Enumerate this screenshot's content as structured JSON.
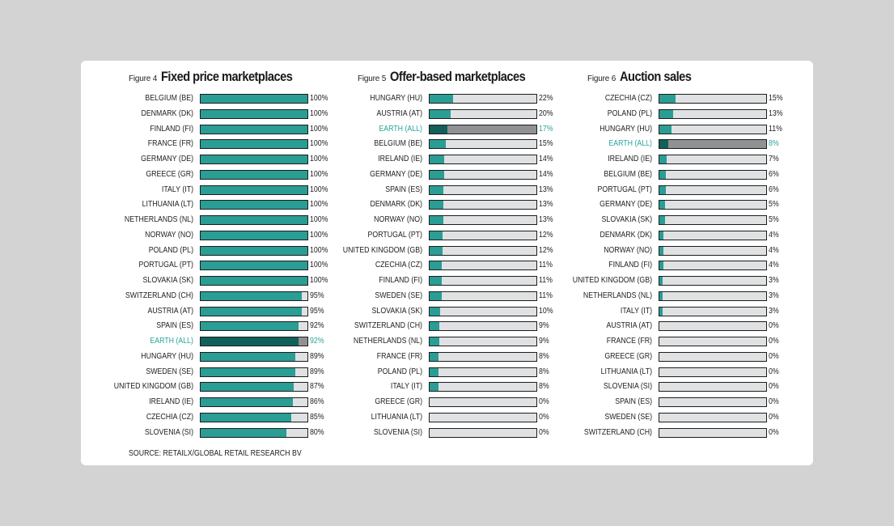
{
  "colors": {
    "bar": "#2a9d94",
    "track": "#dfe1e3",
    "highlight_bar": "#12605a",
    "highlight_track": "#909193",
    "highlight_text": "#2ba49b"
  },
  "source": "SOURCE: RETAILX/GLOBAL RETAIL RESEARCH BV",
  "chart_data": [
    {
      "type": "bar",
      "orientation": "horizontal",
      "figure_label": "Figure 4",
      "title": "Fixed price marketplaces",
      "xlim": [
        0,
        100
      ],
      "highlight": "EARTH (ALL)",
      "categories": [
        "BELGIUM (BE)",
        "DENMARK (DK)",
        "FINLAND (FI)",
        "FRANCE (FR)",
        "GERMANY (DE)",
        "GREECE (GR)",
        "ITALY (IT)",
        "LITHUANIA (LT)",
        "NETHERLANDS (NL)",
        "NORWAY (NO)",
        "POLAND (PL)",
        "PORTUGAL (PT)",
        "SLOVAKIA (SK)",
        "SWITZERLAND (CH)",
        "AUSTRIA (AT)",
        "SPAIN (ES)",
        "EARTH (ALL)",
        "HUNGARY (HU)",
        "SWEDEN (SE)",
        "UNITED KINGDOM (GB)",
        "IRELAND (IE)",
        "CZECHIA (CZ)",
        "SLOVENIA (SI)"
      ],
      "values": [
        100,
        100,
        100,
        100,
        100,
        100,
        100,
        100,
        100,
        100,
        100,
        100,
        100,
        95,
        95,
        92,
        92,
        89,
        89,
        87,
        86,
        85,
        80
      ],
      "value_labels": [
        "100%",
        "100%",
        "100%",
        "100%",
        "100%",
        "100%",
        "100%",
        "100%",
        "100%",
        "100%",
        "100%",
        "100%",
        "100%",
        "95%",
        "95%",
        "92%",
        "92%",
        "89%",
        "89%",
        "87%",
        "86%",
        "85%",
        "80%"
      ]
    },
    {
      "type": "bar",
      "orientation": "horizontal",
      "figure_label": "Figure 5",
      "title": "Offer-based marketplaces",
      "xlim": [
        0,
        100
      ],
      "highlight": "EARTH (ALL)",
      "categories": [
        "HUNGARY (HU)",
        "AUSTRIA (AT)",
        "EARTH (ALL)",
        "BELGIUM (BE)",
        "IRELAND (IE)",
        "GERMANY (DE)",
        "SPAIN (ES)",
        "DENMARK (DK)",
        "NORWAY (NO)",
        "PORTUGAL (PT)",
        "UNITED KINGDOM (GB)",
        "CZECHIA (CZ)",
        "FINLAND (FI)",
        "SWEDEN (SE)",
        "SLOVAKIA (SK)",
        "SWITZERLAND (CH)",
        "NETHERLANDS (NL)",
        "FRANCE (FR)",
        "POLAND (PL)",
        "ITALY (IT)",
        "GREECE (GR)",
        "LITHUANIA (LT)",
        "SLOVENIA (SI)"
      ],
      "values": [
        22,
        20,
        17,
        15,
        14,
        14,
        13,
        13,
        13,
        12,
        12,
        11,
        11,
        11,
        10,
        9,
        9,
        8,
        8,
        8,
        0,
        0,
        0
      ],
      "value_labels": [
        "22%",
        "20%",
        "17%",
        "15%",
        "14%",
        "14%",
        "13%",
        "13%",
        "13%",
        "12%",
        "12%",
        "11%",
        "11%",
        "11%",
        "10%",
        "9%",
        "9%",
        "8%",
        "8%",
        "8%",
        "0%",
        "0%",
        "0%"
      ]
    },
    {
      "type": "bar",
      "orientation": "horizontal",
      "figure_label": "Figure 6",
      "title": "Auction sales",
      "xlim": [
        0,
        100
      ],
      "highlight": "EARTH (ALL)",
      "categories": [
        "CZECHIA (CZ)",
        "POLAND (PL)",
        "HUNGARY (HU)",
        "EARTH (ALL)",
        "IRELAND (IE)",
        "BELGIUM (BE)",
        "PORTUGAL (PT)",
        "GERMANY (DE)",
        "SLOVAKIA (SK)",
        "DENMARK (DK)",
        "NORWAY (NO)",
        "FINLAND (FI)",
        "UNITED KINGDOM (GB)",
        "NETHERLANDS (NL)",
        "ITALY (IT)",
        "AUSTRIA (AT)",
        "FRANCE (FR)",
        "GREECE (GR)",
        "LITHUANIA (LT)",
        "SLOVENIA (SI)",
        "SPAIN (ES)",
        "SWEDEN (SE)",
        "SWITZERLAND (CH)"
      ],
      "values": [
        15,
        13,
        11,
        8,
        7,
        6,
        6,
        5,
        5,
        4,
        4,
        4,
        3,
        3,
        3,
        0,
        0,
        0,
        0,
        0,
        0,
        0,
        0
      ],
      "value_labels": [
        "15%",
        "13%",
        "11%",
        "8%",
        "7%",
        "6%",
        "6%",
        "5%",
        "5%",
        "4%",
        "4%",
        "4%",
        "3%",
        "3%",
        "3%",
        "0%",
        "0%",
        "0%",
        "0%",
        "0%",
        "0%",
        "0%",
        "0%"
      ]
    }
  ]
}
